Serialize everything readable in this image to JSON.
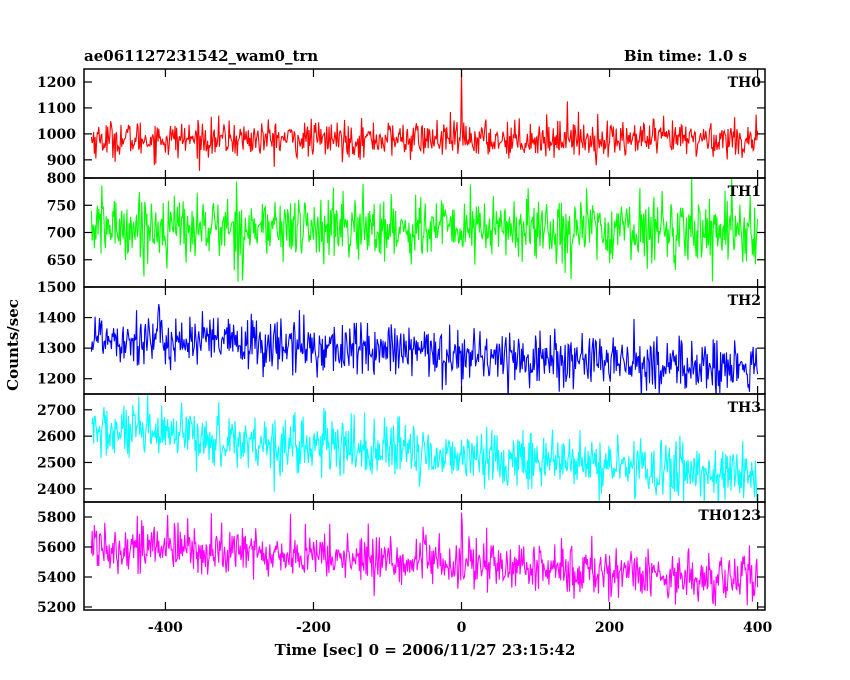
{
  "header": {
    "title_left": "ae061127231542_wam0_trn",
    "title_right": "Bin time: 1.0 s"
  },
  "chart_data": {
    "type": "line",
    "xlabel": "Time [sec] 0 = 2006/11/27 23:15:42",
    "ylabel": "Counts/sec",
    "xlim": [
      -510,
      410
    ],
    "x_ticks": [
      -400,
      -200,
      0,
      200,
      400
    ],
    "x_start": -500,
    "x_end": 400,
    "bin_time": 1.0,
    "grid": false,
    "panels": [
      {
        "name": "TH0",
        "color": "#ff0000",
        "ylim": [
          830,
          1250
        ],
        "y_ticks": [
          900,
          1000,
          1100,
          1200
        ],
        "mean_start": 980,
        "mean_end": 980,
        "noise": 35,
        "spikes": [
          {
            "x": 0,
            "value": 1250
          },
          {
            "x": 143,
            "value": 1125
          }
        ]
      },
      {
        "name": "TH1",
        "color": "#00ff00",
        "ylim": [
          600,
          800
        ],
        "y_ticks": [
          650,
          700,
          750,
          800
        ],
        "mean_start": 710,
        "mean_end": 705,
        "noise": 30,
        "spikes": [
          {
            "x": 365,
            "value": 800
          }
        ]
      },
      {
        "name": "TH2",
        "color": "#0000ff",
        "ylim": [
          1150,
          1500
        ],
        "y_ticks": [
          1200,
          1300,
          1400,
          1500
        ],
        "mean_start": 1340,
        "mean_end": 1230,
        "noise": 45,
        "spikes": []
      },
      {
        "name": "TH3",
        "color": "#00ffff",
        "ylim": [
          2350,
          2760
        ],
        "y_ticks": [
          2400,
          2500,
          2600,
          2700
        ],
        "mean_start": 2620,
        "mean_end": 2450,
        "noise": 55,
        "spikes": []
      },
      {
        "name": "TH0123",
        "color": "#ff00ff",
        "ylim": [
          5180,
          5900
        ],
        "y_ticks": [
          5200,
          5400,
          5600,
          5800
        ],
        "mean_start": 5620,
        "mean_end": 5380,
        "noise": 85,
        "spikes": [
          {
            "x": 0,
            "value": 5830
          }
        ]
      }
    ]
  }
}
